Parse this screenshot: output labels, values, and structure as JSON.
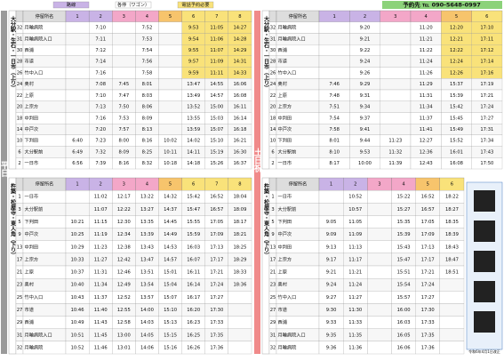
{
  "legend": [
    "路線",
    "各停（ワゴン）",
    "電話予約必要"
  ],
  "phone": "予約先 ℡ 090-5648-0997",
  "weekday": "平日",
  "weekend": "土日祝",
  "note": "令和6年4月1日改正",
  "tables": [
    {
      "label": "大分駅・生石・一日市（上り）",
      "headers": [
        "",
        "停留所名",
        "1",
        "2",
        "3",
        "4",
        "5",
        "6",
        "7",
        "8"
      ],
      "rows": [
        [
          "32",
          "月輪病院",
          "",
          "7:10",
          "",
          "7:52",
          "",
          "9:53",
          "11:05",
          "14:27"
        ],
        [
          "31",
          "月輪病院入口",
          "",
          "7:11",
          "",
          "7:53",
          "",
          "9:54",
          "11:06",
          "14:28"
        ],
        [
          "30",
          "西浦",
          "",
          "7:12",
          "",
          "7:54",
          "",
          "9:55",
          "11:07",
          "14:29"
        ],
        [
          "28",
          "市道",
          "",
          "7:14",
          "",
          "7:56",
          "",
          "9:57",
          "11:09",
          "14:31"
        ],
        [
          "26",
          "竹中入口",
          "",
          "7:16",
          "",
          "7:58",
          "",
          "9:59",
          "11:11",
          "14:33"
        ],
        [
          "24",
          "奥村",
          "",
          "7:08",
          "7:45",
          "8:01",
          "",
          "13:47",
          "14:55",
          "16:06"
        ],
        [
          "22",
          "上原",
          "",
          "7:10",
          "7:47",
          "8:03",
          "",
          "13:49",
          "14:57",
          "16:08"
        ],
        [
          "20",
          "上宗方",
          "",
          "7:13",
          "7:50",
          "8:06",
          "",
          "13:52",
          "15:00",
          "16:11"
        ],
        [
          "18",
          "中判田",
          "",
          "7:16",
          "7:53",
          "8:09",
          "",
          "13:55",
          "15:03",
          "16:14"
        ],
        [
          "14",
          "中戸次",
          "",
          "7:20",
          "7:57",
          "8:13",
          "",
          "13:59",
          "15:07",
          "16:18"
        ],
        [
          "10",
          "下判田",
          "6:40",
          "7:23",
          "8:00",
          "8:16",
          "10:02",
          "14:02",
          "15:10",
          "16:21"
        ],
        [
          "6",
          "大分駅前",
          "6:49",
          "7:32",
          "8:09",
          "8:25",
          "10:11",
          "14:11",
          "15:19",
          "16:30"
        ],
        [
          "2",
          "一日市",
          "6:56",
          "7:39",
          "8:16",
          "8:32",
          "10:18",
          "14:18",
          "15:26",
          "16:37"
        ]
      ]
    },
    {
      "label": "杵築・松屋寺・東人角（下り）",
      "headers": [
        "",
        "停留所名",
        "1",
        "2",
        "3",
        "4",
        "5",
        "6",
        "7",
        "8"
      ],
      "rows": [
        [
          "1",
          "一日市",
          "",
          "11:02",
          "12:17",
          "13:22",
          "14:32",
          "15:42",
          "16:52",
          "18:04"
        ],
        [
          "3",
          "大分駅前",
          "",
          "11:07",
          "12:22",
          "13:27",
          "14:37",
          "15:47",
          "16:57",
          "18:09"
        ],
        [
          "5",
          "下判田",
          "10:21",
          "11:15",
          "12:30",
          "13:35",
          "14:45",
          "15:55",
          "17:05",
          "18:17"
        ],
        [
          "9",
          "中戸次",
          "10:25",
          "11:19",
          "12:34",
          "13:39",
          "14:49",
          "15:59",
          "17:09",
          "18:21"
        ],
        [
          "13",
          "中判田",
          "10:29",
          "11:23",
          "12:38",
          "13:43",
          "14:53",
          "16:03",
          "17:13",
          "18:25"
        ],
        [
          "17",
          "上宗方",
          "10:33",
          "11:27",
          "12:42",
          "13:47",
          "14:57",
          "16:07",
          "17:17",
          "18:29"
        ],
        [
          "21",
          "上原",
          "10:37",
          "11:31",
          "12:46",
          "13:51",
          "15:01",
          "16:11",
          "17:21",
          "18:33"
        ],
        [
          "23",
          "奥村",
          "10:40",
          "11:34",
          "12:49",
          "13:54",
          "15:04",
          "16:14",
          "17:24",
          "18:36"
        ],
        [
          "25",
          "竹中入口",
          "10:43",
          "11:37",
          "12:52",
          "13:57",
          "15:07",
          "16:17",
          "17:27",
          ""
        ],
        [
          "27",
          "市道",
          "10:46",
          "11:40",
          "12:55",
          "14:00",
          "15:10",
          "16:20",
          "17:30",
          ""
        ],
        [
          "29",
          "西浦",
          "10:49",
          "11:43",
          "12:58",
          "14:03",
          "15:13",
          "16:23",
          "17:33",
          ""
        ],
        [
          "31",
          "月輪病院入口",
          "10:51",
          "11:45",
          "13:00",
          "14:05",
          "15:15",
          "16:25",
          "17:35",
          ""
        ],
        [
          "32",
          "月輪病院",
          "10:52",
          "11:46",
          "13:01",
          "14:06",
          "15:16",
          "16:26",
          "17:36",
          ""
        ]
      ]
    },
    {
      "label": "大分駅・生石・一日市（上り）",
      "headers": [
        "",
        "停留所名",
        "1",
        "2",
        "3",
        "4",
        "5",
        "6"
      ],
      "rows": [
        [
          "32",
          "月輪病院",
          "",
          "9:20",
          "",
          "11:20",
          "12:20",
          "17:10"
        ],
        [
          "31",
          "月輪病院入口",
          "",
          "9:21",
          "",
          "11:21",
          "12:21",
          "17:11"
        ],
        [
          "30",
          "西浦",
          "",
          "9:22",
          "",
          "11:22",
          "12:22",
          "17:12"
        ],
        [
          "28",
          "市道",
          "",
          "9:24",
          "",
          "11:24",
          "12:24",
          "17:14"
        ],
        [
          "26",
          "竹中入口",
          "",
          "9:26",
          "",
          "11:26",
          "12:26",
          "17:16"
        ],
        [
          "24",
          "奥村",
          "7:46",
          "9:29",
          "",
          "11:29",
          "15:37",
          "17:19"
        ],
        [
          "22",
          "上原",
          "7:48",
          "9:31",
          "",
          "11:31",
          "15:39",
          "17:21"
        ],
        [
          "20",
          "上宗方",
          "7:51",
          "9:34",
          "",
          "11:34",
          "15:42",
          "17:24"
        ],
        [
          "18",
          "中判田",
          "7:54",
          "9:37",
          "",
          "11:37",
          "15:45",
          "17:27"
        ],
        [
          "14",
          "中戸次",
          "7:58",
          "9:41",
          "",
          "11:41",
          "15:49",
          "17:31"
        ],
        [
          "10",
          "下判田",
          "8:01",
          "9:44",
          "11:23",
          "12:27",
          "15:52",
          "17:34"
        ],
        [
          "6",
          "大分駅前",
          "8:10",
          "9:53",
          "11:32",
          "12:36",
          "16:01",
          "17:43"
        ],
        [
          "2",
          "一日市",
          "8:17",
          "10:00",
          "11:39",
          "12:43",
          "16:08",
          "17:50"
        ]
      ]
    },
    {
      "label": "杵築・松屋寺・東人角（下り）",
      "headers": [
        "",
        "停留所名",
        "1",
        "2",
        "3",
        "4",
        "5",
        "6"
      ],
      "rows": [
        [
          "1",
          "一日市",
          "",
          "10:52",
          "",
          "15:22",
          "16:52",
          "18:22"
        ],
        [
          "3",
          "大分駅前",
          "",
          "10:57",
          "",
          "15:27",
          "16:57",
          "18:27"
        ],
        [
          "5",
          "下判田",
          "9:05",
          "11:05",
          "",
          "15:35",
          "17:05",
          "18:35"
        ],
        [
          "9",
          "中戸次",
          "9:09",
          "11:09",
          "",
          "15:39",
          "17:09",
          "18:39"
        ],
        [
          "13",
          "中判田",
          "9:13",
          "11:13",
          "",
          "15:43",
          "17:13",
          "18:43"
        ],
        [
          "17",
          "上宗方",
          "9:17",
          "11:17",
          "",
          "15:47",
          "17:17",
          "18:47"
        ],
        [
          "21",
          "上原",
          "9:21",
          "11:21",
          "",
          "15:51",
          "17:21",
          "18:51"
        ],
        [
          "23",
          "奥村",
          "9:24",
          "11:24",
          "",
          "15:54",
          "17:24",
          ""
        ],
        [
          "25",
          "竹中入口",
          "9:27",
          "11:27",
          "",
          "15:57",
          "17:27",
          ""
        ],
        [
          "27",
          "市道",
          "9:30",
          "11:30",
          "",
          "16:00",
          "17:30",
          ""
        ],
        [
          "29",
          "西浦",
          "9:33",
          "11:33",
          "",
          "16:03",
          "17:33",
          ""
        ],
        [
          "31",
          "月輪病院入口",
          "9:35",
          "11:35",
          "",
          "16:05",
          "17:35",
          ""
        ],
        [
          "32",
          "月輪病院",
          "9:36",
          "11:36",
          "",
          "16:06",
          "17:36",
          ""
        ]
      ]
    }
  ]
}
